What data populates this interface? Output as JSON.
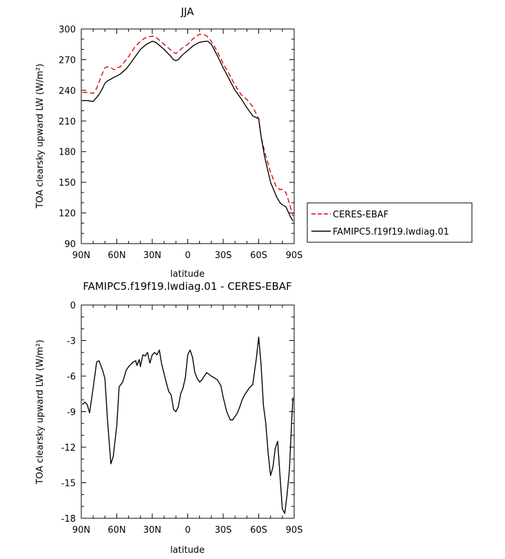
{
  "chart_data": [
    {
      "type": "line",
      "title": "JJA",
      "xlabel": "latitude",
      "ylabel": "TOA clearsky upward LW (W/m²)",
      "xlim": [
        -90,
        90
      ],
      "ylim": [
        90,
        300
      ],
      "xticks": [
        "90N",
        "60N",
        "30N",
        "0",
        "30S",
        "60S",
        "90S"
      ],
      "yticks": [
        "90",
        "120",
        "150",
        "180",
        "210",
        "240",
        "270",
        "300"
      ],
      "grid": false,
      "legend_position": "right",
      "series": [
        {
          "name": "CERES-EBAF",
          "color": "#dd0000",
          "style": "dashed",
          "x": [
            -89,
            -85,
            -80,
            -77,
            -75,
            -72,
            -70,
            -68,
            -65,
            -62,
            -60,
            -57,
            -55,
            -52,
            -50,
            -45,
            -40,
            -35,
            -30,
            -27,
            -25,
            -20,
            -15,
            -12,
            -10,
            -8,
            -5,
            0,
            5,
            10,
            15,
            17,
            20,
            25,
            30,
            35,
            40,
            45,
            50,
            55,
            60,
            62,
            65,
            70,
            75,
            78,
            80,
            83,
            85,
            87,
            89
          ],
          "y": [
            238,
            238,
            237,
            242,
            248,
            257,
            262,
            263,
            262,
            260,
            262,
            263,
            266,
            270,
            273,
            282,
            288,
            292,
            293,
            292,
            290,
            285,
            280,
            277,
            276,
            278,
            281,
            285,
            291,
            295,
            294,
            292,
            288,
            278,
            266,
            256,
            245,
            236,
            231,
            224,
            212,
            195,
            180,
            160,
            145,
            143,
            143,
            140,
            133,
            125,
            117
          ]
        },
        {
          "name": "FAMIPC5.f19f19.lwdiag.01",
          "color": "#000000",
          "style": "solid",
          "x": [
            -89,
            -85,
            -80,
            -77,
            -75,
            -72,
            -70,
            -68,
            -65,
            -62,
            -60,
            -57,
            -55,
            -52,
            -50,
            -45,
            -40,
            -35,
            -30,
            -27,
            -25,
            -20,
            -15,
            -12,
            -10,
            -8,
            -5,
            0,
            5,
            10,
            15,
            17,
            20,
            25,
            30,
            35,
            40,
            45,
            50,
            55,
            60,
            62,
            65,
            70,
            75,
            78,
            80,
            83,
            85,
            87,
            89
          ],
          "y": [
            230,
            230,
            229,
            233,
            236,
            242,
            247,
            249,
            251,
            253,
            254,
            256,
            258,
            261,
            264,
            272,
            280,
            285,
            288,
            287,
            285,
            280,
            274,
            270,
            269,
            270,
            274,
            279,
            284,
            287,
            288,
            288,
            285,
            274,
            262,
            251,
            240,
            232,
            223,
            215,
            212,
            195,
            175,
            150,
            136,
            130,
            128,
            126,
            121,
            116,
            112
          ]
        }
      ]
    },
    {
      "type": "line",
      "title": "FAMIPC5.f19f19.lwdiag.01 - CERES-EBAF",
      "xlabel": "latitude",
      "ylabel": "TOA clearsky upward LW (W/m²)",
      "xlim": [
        -90,
        90
      ],
      "ylim": [
        -18,
        0
      ],
      "xticks": [
        "90N",
        "60N",
        "30N",
        "0",
        "30S",
        "60S",
        "90S"
      ],
      "yticks": [
        "0",
        "-3",
        "-6",
        "-9",
        "-12",
        "-15",
        "-18"
      ],
      "grid": false,
      "series": [
        {
          "color": "#000000",
          "style": "solid",
          "x": [
            -89,
            -87,
            -85,
            -83,
            -80,
            -77,
            -75,
            -72,
            -70,
            -68,
            -65,
            -63,
            -60,
            -58,
            -55,
            -52,
            -50,
            -48,
            -46,
            -44,
            -43,
            -41,
            -40,
            -38,
            -36,
            -34,
            -32,
            -30,
            -28,
            -26,
            -24,
            -22,
            -20,
            -18,
            -16,
            -14,
            -12,
            -10,
            -8,
            -6,
            -4,
            -2,
            0,
            2,
            4,
            6,
            8,
            10,
            12,
            14,
            16,
            20,
            25,
            28,
            30,
            33,
            36,
            38,
            40,
            42,
            44,
            46,
            48,
            50,
            52,
            55,
            58,
            60,
            62,
            64,
            66,
            68,
            70,
            72,
            74,
            76,
            78,
            80,
            82,
            84,
            86,
            88,
            89
          ],
          "y": [
            -8.4,
            -8.2,
            -8.4,
            -9.1,
            -7.0,
            -4.8,
            -4.7,
            -5.5,
            -6.2,
            -9.5,
            -13.4,
            -12.8,
            -10.2,
            -6.9,
            -6.5,
            -5.5,
            -5.2,
            -5.0,
            -4.8,
            -4.7,
            -5.1,
            -4.6,
            -5.2,
            -4.2,
            -4.3,
            -4.0,
            -4.9,
            -4.2,
            -4.0,
            -4.2,
            -3.8,
            -5.0,
            -5.8,
            -6.6,
            -7.3,
            -7.6,
            -8.8,
            -9.0,
            -8.6,
            -7.5,
            -7.0,
            -6.1,
            -4.2,
            -3.8,
            -4.4,
            -5.7,
            -6.2,
            -6.5,
            -6.3,
            -6.0,
            -5.7,
            -6.0,
            -6.3,
            -6.8,
            -7.8,
            -9.0,
            -9.7,
            -9.7,
            -9.4,
            -9.1,
            -8.6,
            -8.0,
            -7.6,
            -7.3,
            -7.0,
            -6.7,
            -4.5,
            -2.7,
            -5.0,
            -8.5,
            -10.0,
            -12.5,
            -14.4,
            -13.7,
            -12.1,
            -11.5,
            -14.4,
            -17.2,
            -17.6,
            -16.0,
            -13.9,
            -9.5,
            -7.8
          ]
        }
      ]
    }
  ]
}
